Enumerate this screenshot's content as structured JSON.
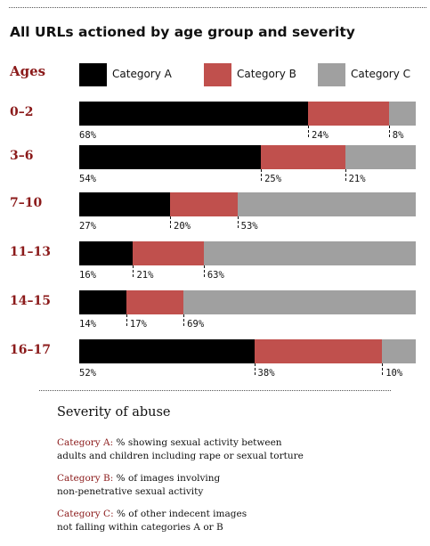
{
  "chart_data": {
    "type": "bar",
    "stacked": true,
    "orientation": "horizontal",
    "title": "All URLs actioned by age group and severity",
    "axis_label": "Ages",
    "categories": [
      "0–2",
      "3–6",
      "7–10",
      "11–13",
      "14–15",
      "16–17"
    ],
    "series": [
      {
        "name": "Category A",
        "color": "#000000",
        "values": [
          68,
          54,
          27,
          16,
          14,
          52
        ]
      },
      {
        "name": "Category B",
        "color": "#c0504d",
        "values": [
          24,
          25,
          20,
          21,
          17,
          38
        ]
      },
      {
        "name": "Category C",
        "color": "#a0a0a0",
        "values": [
          8,
          21,
          53,
          63,
          69,
          10
        ]
      }
    ],
    "value_suffix": "%",
    "xlim": [
      0,
      100
    ],
    "legend_position": "top",
    "grid": false
  },
  "notes": {
    "title": "Severity of abuse",
    "items": [
      {
        "key": "Category A:",
        "text": " % showing sexual activity between",
        "text2": "adults and children including rape or sexual torture"
      },
      {
        "key": "Category B:",
        "text": " % of images involving",
        "text2": "non-penetrative sexual activity"
      },
      {
        "key": "Category C:",
        "text": " % of other indecent images",
        "text2": "not falling within categories A or B"
      }
    ]
  },
  "colors": {
    "accent_text": "#8b1a1a"
  }
}
